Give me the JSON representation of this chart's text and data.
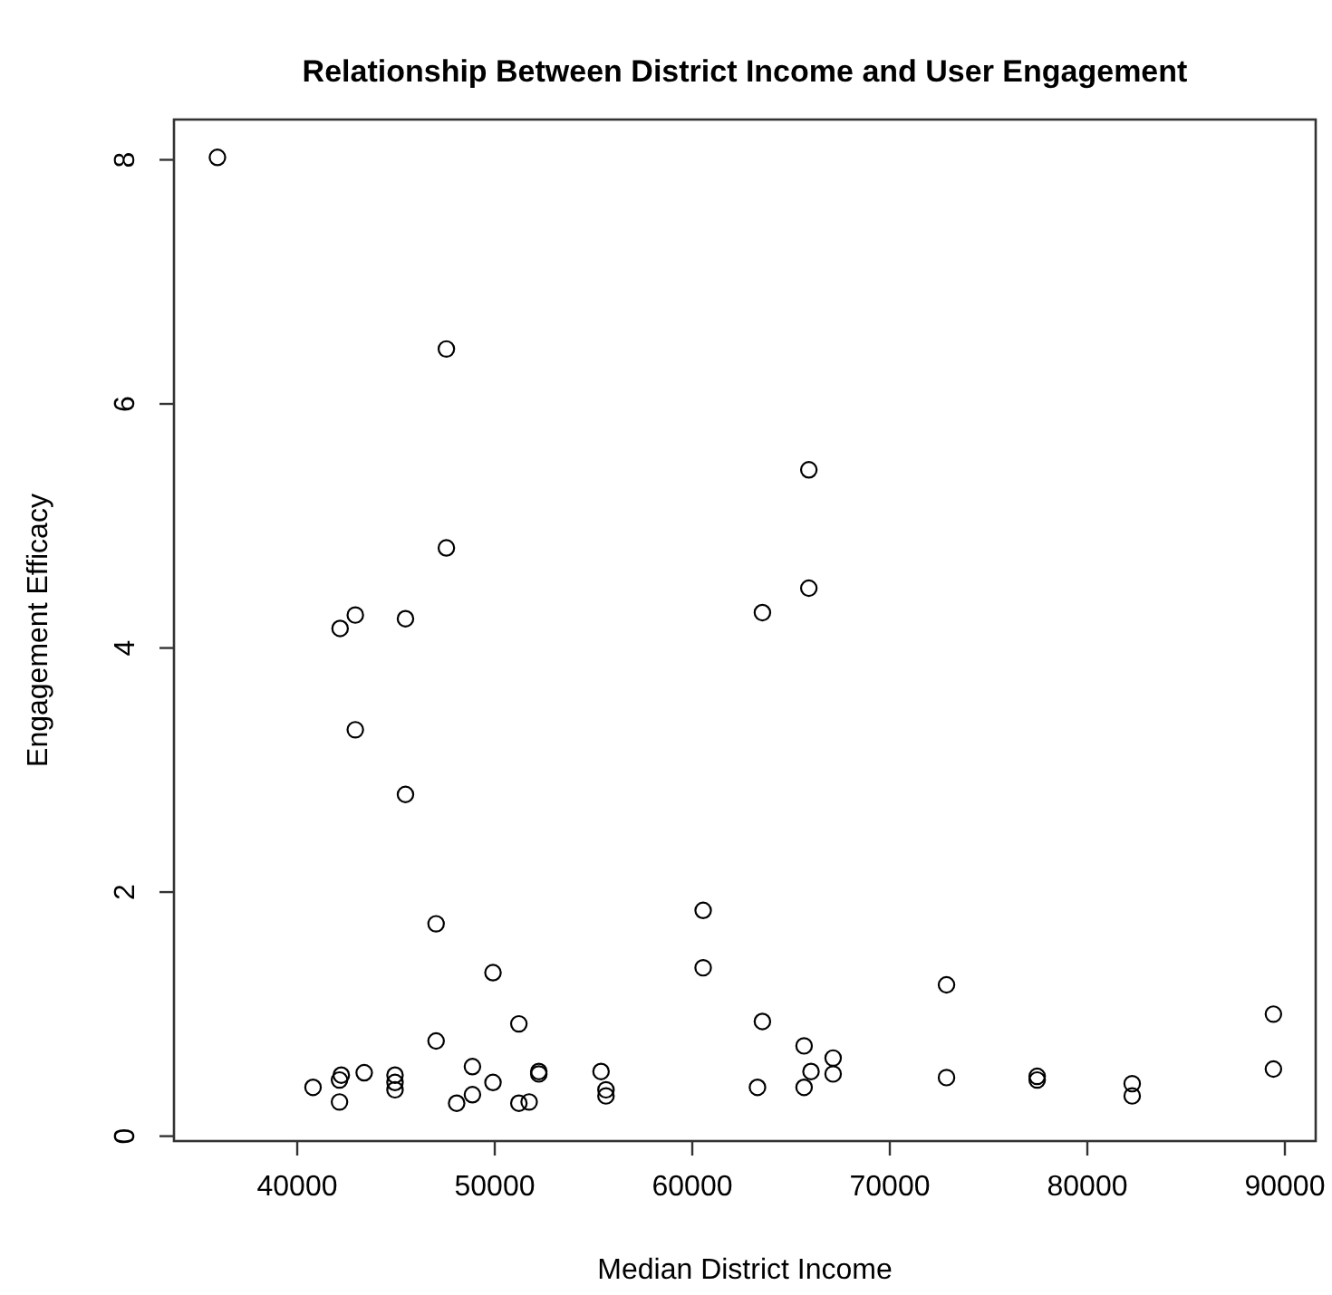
{
  "chart_data": {
    "type": "scatter",
    "title": "Relationship Between District Income and User Engagement",
    "xlabel": "Median District Income",
    "ylabel": "Engagement Efficacy",
    "x": [
      35960,
      47550,
      47550,
      42170,
      42940,
      45480,
      42940,
      45480,
      65900,
      65900,
      63550,
      72870,
      63550,
      65660,
      66010,
      67130,
      67130,
      63300,
      65660,
      72870,
      77460,
      77460,
      82270,
      82270,
      89420,
      89420,
      47030,
      49910,
      51220,
      47030,
      60550,
      60550,
      40800,
      42230,
      42140,
      42140,
      43390,
      44950,
      44950,
      44950,
      48870,
      48870,
      48070,
      49910,
      51220,
      51740,
      52230,
      52230,
      55380,
      55630,
      55630
    ],
    "values": [
      8.02,
      6.45,
      4.82,
      4.16,
      4.27,
      4.24,
      3.33,
      2.8,
      5.46,
      4.49,
      4.29,
      1.24,
      0.94,
      0.74,
      0.53,
      0.64,
      0.51,
      0.4,
      0.4,
      0.48,
      0.49,
      0.46,
      0.43,
      0.33,
      1.0,
      0.55,
      1.74,
      1.34,
      0.92,
      0.78,
      1.85,
      1.38,
      0.4,
      0.5,
      0.46,
      0.28,
      0.52,
      0.5,
      0.44,
      0.38,
      0.57,
      0.34,
      0.27,
      0.44,
      0.27,
      0.28,
      0.53,
      0.51,
      0.53,
      0.38,
      0.33
    ],
    "color": "#000000",
    "marker": "circle",
    "xlim": [
      33760,
      91560
    ],
    "ylim": [
      -0.04,
      8.33
    ],
    "xticks": [
      40000,
      50000,
      60000,
      70000,
      80000,
      90000
    ],
    "yticks": [
      0,
      2,
      4,
      6,
      8
    ]
  }
}
